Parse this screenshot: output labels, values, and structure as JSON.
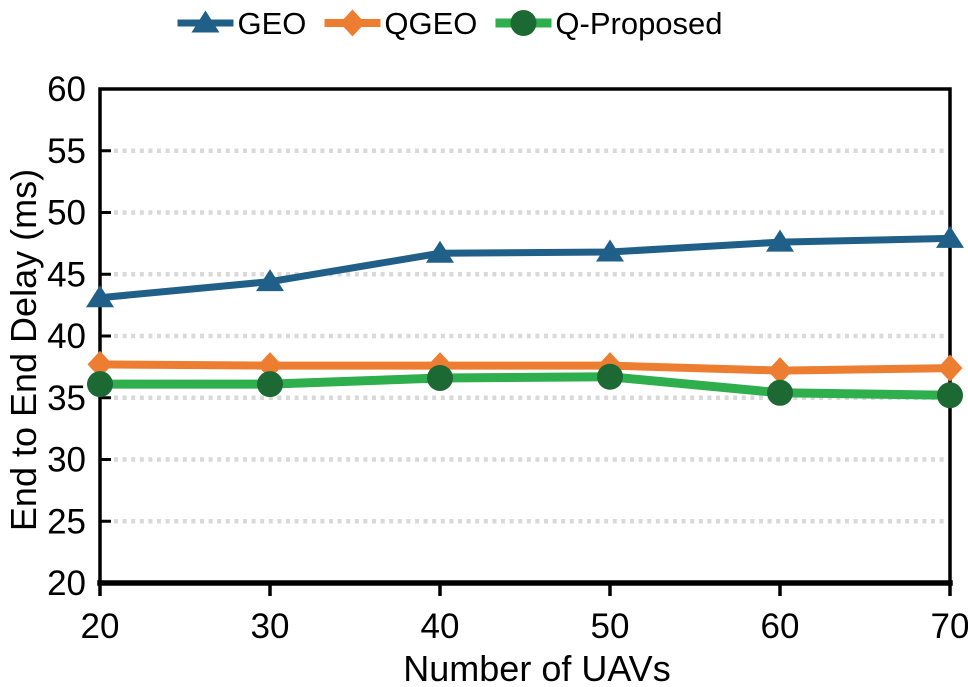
{
  "chart_data": {
    "type": "line",
    "title": "",
    "xlabel": "Number of UAVs",
    "ylabel": "End to End Delay (ms)",
    "xlim": [
      20,
      70
    ],
    "ylim": [
      20,
      60
    ],
    "xticks": [
      20,
      30,
      40,
      50,
      60,
      70
    ],
    "yticks": [
      20,
      25,
      30,
      35,
      40,
      45,
      50,
      55,
      60
    ],
    "grid": "horizontal-dotted",
    "grid_color": "#D9D9D9",
    "axis_color": "#000000",
    "background_color": "#FFFFFF",
    "legend_position": "top-center",
    "x": [
      20,
      30,
      40,
      50,
      60,
      70
    ],
    "series": [
      {
        "name": "GEO",
        "marker": "triangle",
        "color": "#205F87",
        "marker_color": "#205F87",
        "values": [
          43.1,
          44.4,
          46.7,
          46.8,
          47.6,
          47.9
        ]
      },
      {
        "name": "QGEO",
        "marker": "diamond",
        "color": "#ED7D31",
        "marker_color": "#ED7D31",
        "values": [
          37.7,
          37.6,
          37.6,
          37.6,
          37.2,
          37.4
        ]
      },
      {
        "name": "Q-Proposed",
        "marker": "circle",
        "color": "#2EAE4D",
        "marker_color": "#1D6934",
        "values": [
          36.1,
          36.1,
          36.6,
          36.7,
          35.4,
          35.2
        ]
      }
    ]
  }
}
